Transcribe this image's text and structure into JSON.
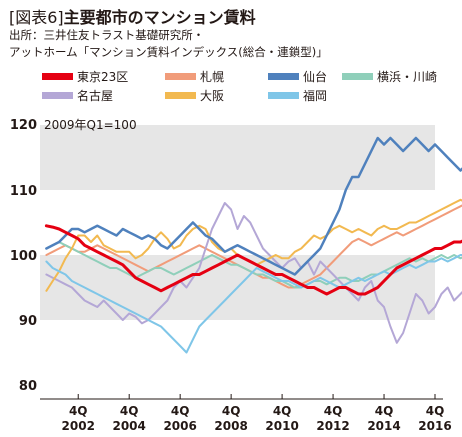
{
  "header": {
    "fig_tag": "[図表6]",
    "title": "主要都市のマンション賃料",
    "source_line1": "出所：三井住友トラスト基礎研究所・",
    "source_line2": "アットホーム「マンション賃料インデックス(総合・連鎖型)」"
  },
  "chart_data": {
    "type": "line",
    "base_note": "2009年Q1=100",
    "ylim": [
      80,
      120
    ],
    "y_ticks": [
      80,
      90,
      100,
      110,
      120
    ],
    "xlim": [
      2001.25,
      2016.75
    ],
    "x_ticks": [
      {
        "q": "4Q",
        "year": "2002",
        "x": 2002.75
      },
      {
        "q": "4Q",
        "year": "2004",
        "x": 2004.75
      },
      {
        "q": "4Q",
        "year": "2006",
        "x": 2006.75
      },
      {
        "q": "4Q",
        "year": "2008",
        "x": 2008.75
      },
      {
        "q": "4Q",
        "year": "2010",
        "x": 2010.75
      },
      {
        "q": "4Q",
        "year": "2012",
        "x": 2012.75
      },
      {
        "q": "4Q",
        "year": "2014",
        "x": 2014.75
      },
      {
        "q": "4Q",
        "year": "2016",
        "x": 2016.75
      }
    ],
    "shaded_bands": [
      [
        90,
        100
      ],
      [
        110,
        120
      ]
    ],
    "grid": false,
    "x_start": 2001.5,
    "x_step": 0.25,
    "series": [
      {
        "name": "東京23区",
        "color": "#e50012",
        "width": 3,
        "values": [
          104.5,
          104.3,
          104,
          103.5,
          103,
          102.5,
          101.5,
          101,
          100.5,
          100,
          99.5,
          99,
          98.5,
          97.5,
          96.5,
          96,
          95.5,
          95,
          94.5,
          95,
          95.5,
          96,
          96.5,
          97,
          97,
          97.5,
          98,
          98.5,
          99,
          99.5,
          100,
          99.5,
          99,
          98.5,
          98,
          97.5,
          97,
          97,
          96.5,
          96,
          95.5,
          95,
          95,
          94.5,
          94,
          94.5,
          95,
          95,
          94.5,
          94,
          94,
          94.5,
          95,
          96,
          97,
          98,
          98.5,
          99,
          99.5,
          100,
          100.5,
          101,
          101,
          101.5,
          102,
          102,
          102.5,
          103
        ]
      },
      {
        "name": "札幌",
        "color": "#f19c7a",
        "width": 2,
        "values": [
          100,
          100.5,
          101,
          101.5,
          101,
          100.5,
          100.5,
          101,
          101.5,
          101,
          100.5,
          100,
          99.5,
          99,
          98.5,
          98,
          97.5,
          98,
          98.5,
          99,
          99.5,
          100,
          100.5,
          101,
          101.5,
          101,
          100.5,
          100,
          99.5,
          99,
          98.5,
          98,
          97.5,
          97,
          96.5,
          96.5,
          96,
          95.5,
          95,
          95,
          95.5,
          96,
          96.5,
          97,
          98,
          99,
          100,
          101,
          102,
          102.5,
          102,
          101.5,
          102,
          102.5,
          103,
          103.5,
          103,
          103.5,
          104,
          104.5,
          105,
          105.5,
          106,
          106.5,
          107,
          107.5,
          108,
          109
        ]
      },
      {
        "name": "仙台",
        "color": "#4f81bd",
        "width": 2.5,
        "values": [
          101,
          101.5,
          102,
          103,
          104,
          104,
          103.5,
          104,
          104.5,
          104,
          103.5,
          103,
          104,
          103.5,
          103,
          102.5,
          103,
          102.5,
          101.5,
          101,
          102,
          103,
          104,
          105,
          104,
          103,
          102.5,
          101.5,
          100.5,
          101,
          101.5,
          101,
          100.5,
          100,
          99.5,
          99,
          98.5,
          98,
          97.5,
          97,
          98,
          99,
          100,
          101,
          103,
          105,
          107,
          110,
          112,
          112,
          114,
          116,
          118,
          117,
          118,
          117,
          116,
          117,
          118,
          117,
          116,
          117,
          116,
          115,
          114,
          113,
          114,
          114
        ]
      },
      {
        "name": "横浜・川崎",
        "color": "#8fcfba",
        "width": 2,
        "values": [
          101,
          101.5,
          102,
          101.5,
          101,
          100.5,
          100,
          99.5,
          99,
          98.5,
          98,
          98,
          97.5,
          97,
          96.5,
          97,
          97.5,
          98,
          98,
          97.5,
          97,
          97.5,
          98,
          98.5,
          99,
          99.5,
          100,
          99.5,
          99,
          98.5,
          98.5,
          98,
          97.5,
          97,
          97,
          96.5,
          96,
          96,
          95.5,
          95,
          95,
          95.5,
          96,
          96,
          95.5,
          96,
          96.5,
          96.5,
          96,
          96,
          96.5,
          97,
          97,
          97.5,
          98,
          98.5,
          99,
          99.5,
          99,
          99.5,
          99,
          99.5,
          100,
          99.5,
          100,
          99.5,
          100,
          99.5
        ]
      },
      {
        "name": "名古屋",
        "color": "#b4a7d6",
        "width": 2,
        "values": [
          97,
          96.5,
          96,
          95.5,
          95,
          94,
          93,
          92.5,
          92,
          93,
          92,
          91,
          90,
          91,
          90.5,
          89.5,
          90,
          91,
          92,
          93,
          95,
          96,
          95,
          96.5,
          98,
          101,
          104,
          106,
          108,
          107,
          104,
          106,
          105,
          103,
          101,
          100,
          99,
          98,
          99,
          99.5,
          98,
          99,
          97,
          99,
          98,
          97,
          96,
          95,
          94,
          93,
          95,
          96,
          93,
          92,
          89,
          86.5,
          88,
          91,
          94,
          93,
          91,
          92,
          94,
          95,
          93,
          94,
          95,
          97.5
        ]
      },
      {
        "name": "大阪",
        "color": "#f2b950",
        "width": 2,
        "values": [
          94.5,
          96,
          97.5,
          99.5,
          101,
          103,
          103,
          102,
          103,
          101.5,
          101,
          100.5,
          100.5,
          100.5,
          99.5,
          100,
          101,
          102.5,
          103.5,
          102.5,
          101,
          101.5,
          103,
          104,
          104.5,
          104,
          102,
          101,
          100.5,
          101,
          100,
          99.5,
          99,
          98.5,
          99,
          99.5,
          100,
          99.5,
          99.5,
          100.5,
          101,
          102,
          103,
          102.5,
          103,
          104,
          104.5,
          104,
          103.5,
          104,
          103.5,
          103,
          104,
          104.5,
          104,
          104,
          104.5,
          105,
          105,
          105.5,
          106,
          106.5,
          107,
          107.5,
          108,
          108.5,
          108,
          109
        ]
      },
      {
        "name": "福岡",
        "color": "#7fc6e8",
        "width": 2,
        "values": [
          99,
          98,
          97.5,
          97,
          96,
          95.5,
          95,
          94.5,
          94,
          93.5,
          93,
          92.5,
          92,
          91.5,
          91,
          90.5,
          90,
          89.5,
          89,
          88,
          87,
          86,
          85,
          87,
          89,
          90,
          91,
          92,
          93,
          94,
          95,
          96,
          97,
          98,
          97.5,
          97,
          96.5,
          96,
          96,
          95.5,
          95,
          95.5,
          96,
          96.5,
          96,
          95.5,
          95,
          95.5,
          96,
          96.5,
          96,
          96.5,
          97,
          97.5,
          97,
          97.5,
          98,
          98.5,
          98,
          98.5,
          99,
          99,
          99.5,
          99,
          99.5,
          100,
          100,
          100
        ]
      }
    ]
  }
}
